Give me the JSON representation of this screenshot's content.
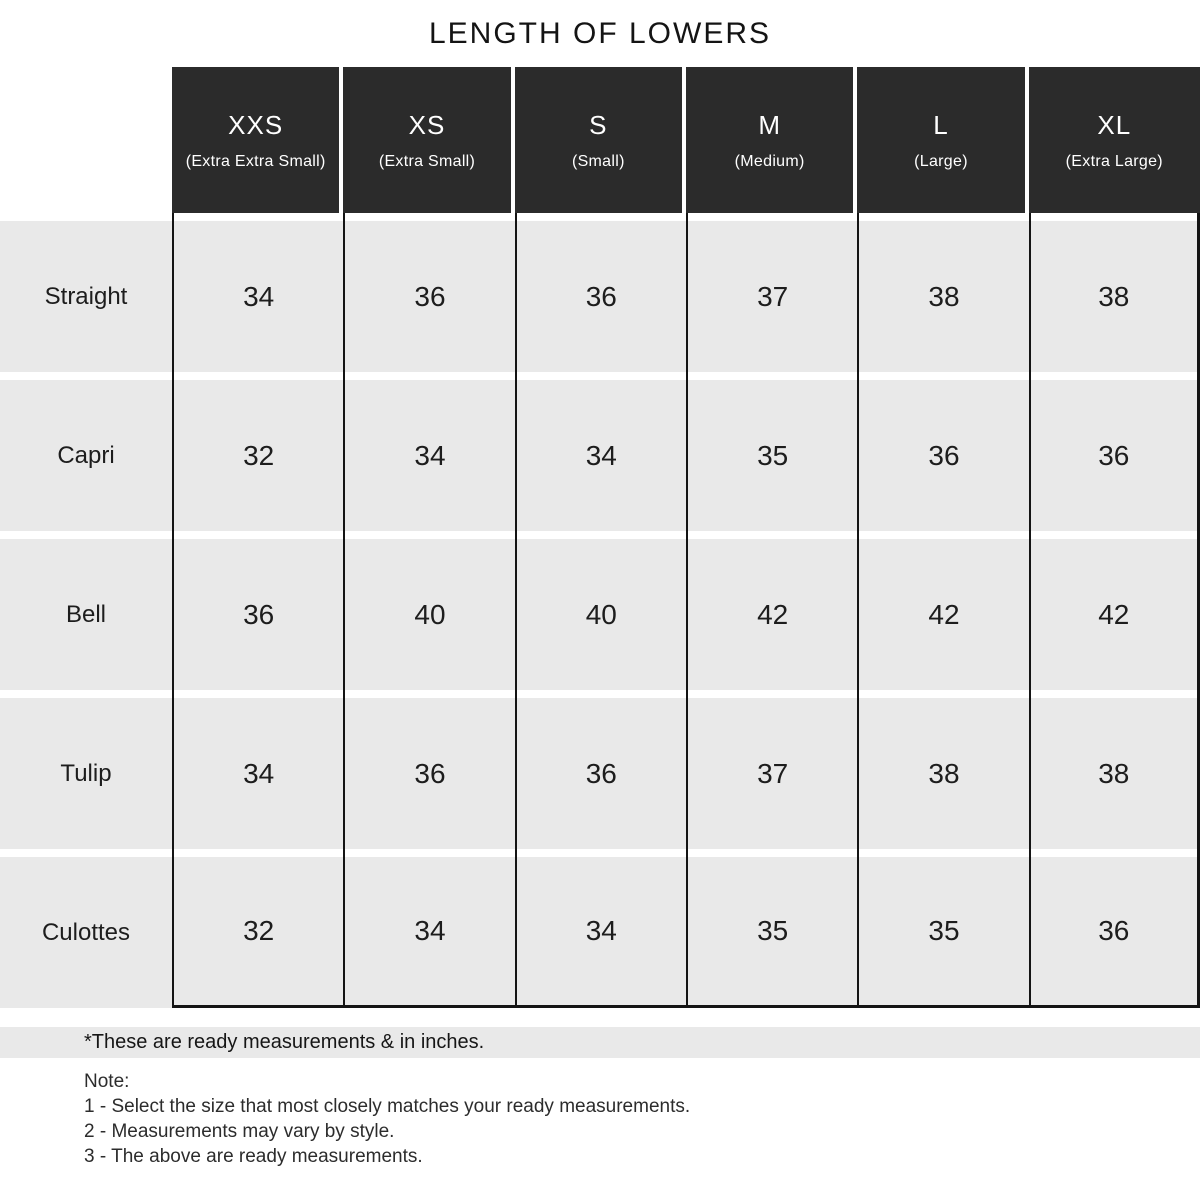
{
  "title": "LENGTH OF LOWERS",
  "header": {
    "sizes": [
      {
        "abbr": "XXS",
        "name": "(Extra Extra Small)"
      },
      {
        "abbr": "XS",
        "name": "(Extra Small)"
      },
      {
        "abbr": "S",
        "name": "(Small)"
      },
      {
        "abbr": "M",
        "name": "(Medium)"
      },
      {
        "abbr": "L",
        "name": "(Large)"
      },
      {
        "abbr": "XL",
        "name": "(Extra Large)"
      }
    ]
  },
  "chart_data": {
    "type": "table",
    "title": "LENGTH OF LOWERS",
    "unit": "inches",
    "columns": [
      "XXS (Extra Extra Small)",
      "XS (Extra Small)",
      "S (Small)",
      "M (Medium)",
      "L (Large)",
      "XL (Extra Large)"
    ],
    "rows": [
      "Straight",
      "Capri",
      "Bell",
      "Tulip",
      "Culottes"
    ],
    "values": [
      [
        34,
        36,
        36,
        37,
        38,
        38
      ],
      [
        32,
        34,
        34,
        35,
        36,
        36
      ],
      [
        36,
        40,
        40,
        42,
        42,
        42
      ],
      [
        34,
        36,
        36,
        37,
        38,
        38
      ],
      [
        32,
        34,
        34,
        35,
        35,
        36
      ]
    ]
  },
  "footnote": "*These are ready measurements & in inches.",
  "notes": {
    "heading": "Note:",
    "items": [
      "1 - Select the size that most closely matches your ready measurements.",
      "2 - Measurements may vary by style.",
      "3 - The above are ready measurements."
    ]
  },
  "colors": {
    "header_bg": "#2b2b2b",
    "header_text": "#ffffff",
    "row_bg": "#e9e9e9",
    "rule": "#141414",
    "text": "#1d1d1d"
  }
}
